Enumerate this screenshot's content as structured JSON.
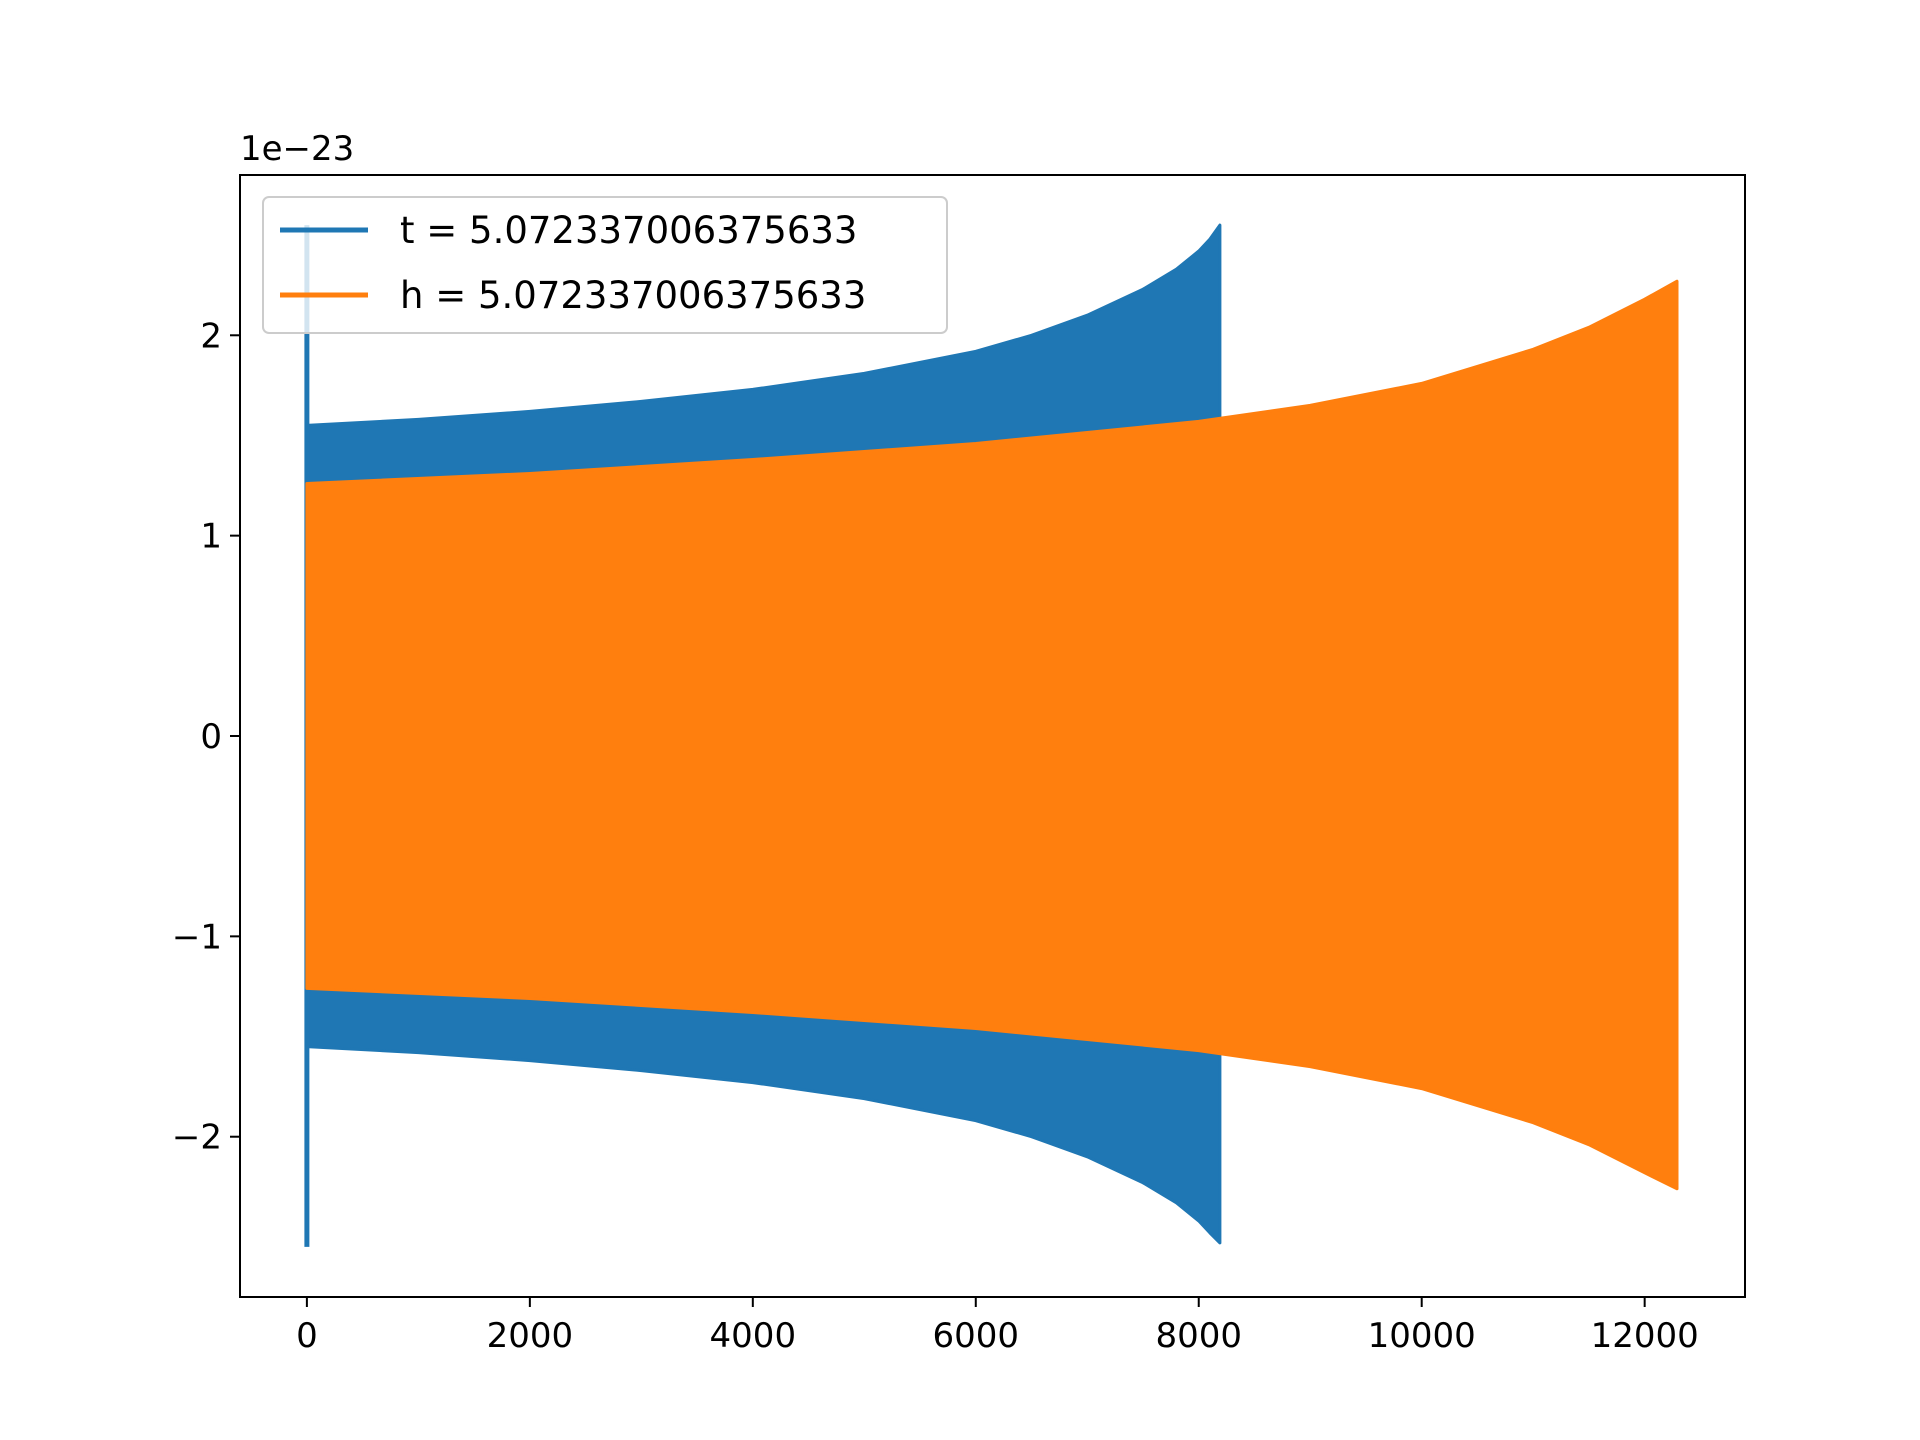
{
  "chart_data": {
    "type": "line",
    "title": "",
    "xlabel": "",
    "ylabel": "",
    "y_offset_text": "1e−23",
    "xlim": [
      -600,
      12900
    ],
    "ylim": [
      -2.8,
      2.8
    ],
    "grid": false,
    "legend_position": "upper-left",
    "x_ticks": [
      {
        "value": 0,
        "label": "0"
      },
      {
        "value": 2000,
        "label": "2000"
      },
      {
        "value": 4000,
        "label": "4000"
      },
      {
        "value": 6000,
        "label": "6000"
      },
      {
        "value": 8000,
        "label": "8000"
      },
      {
        "value": 10000,
        "label": "10000"
      },
      {
        "value": 12000,
        "label": "12000"
      }
    ],
    "y_ticks": [
      {
        "value": -2,
        "label": "−2"
      },
      {
        "value": -1,
        "label": "−1"
      },
      {
        "value": 0,
        "label": "0"
      },
      {
        "value": 1,
        "label": "1"
      },
      {
        "value": 2,
        "label": "2"
      }
    ],
    "series": [
      {
        "name": "t = 5.072337006375633",
        "color": "#1f77b4",
        "render": "oscillation-envelope",
        "spike": {
          "x": 0,
          "ymax": 2.55,
          "ymin": -2.55
        },
        "x": [
          0,
          1000,
          2000,
          3000,
          4000,
          5000,
          6000,
          6500,
          7000,
          7500,
          7800,
          8000,
          8100,
          8190
        ],
        "upper": [
          1.55,
          1.58,
          1.62,
          1.67,
          1.73,
          1.81,
          1.92,
          2.0,
          2.1,
          2.23,
          2.33,
          2.42,
          2.48,
          2.55
        ],
        "lower": [
          -1.55,
          -1.58,
          -1.62,
          -1.67,
          -1.73,
          -1.81,
          -1.92,
          -2.0,
          -2.1,
          -2.23,
          -2.33,
          -2.42,
          -2.48,
          -2.53
        ]
      },
      {
        "name": "h = 5.072337006375633",
        "color": "#ff7f0e",
        "render": "oscillation-envelope",
        "x": [
          0,
          2000,
          4000,
          6000,
          8000,
          9000,
          10000,
          11000,
          11500,
          12000,
          12290
        ],
        "upper": [
          1.26,
          1.31,
          1.38,
          1.46,
          1.57,
          1.65,
          1.76,
          1.93,
          2.04,
          2.18,
          2.27
        ],
        "lower": [
          -1.26,
          -1.31,
          -1.38,
          -1.46,
          -1.57,
          -1.65,
          -1.76,
          -1.93,
          -2.04,
          -2.18,
          -2.26
        ]
      }
    ]
  }
}
